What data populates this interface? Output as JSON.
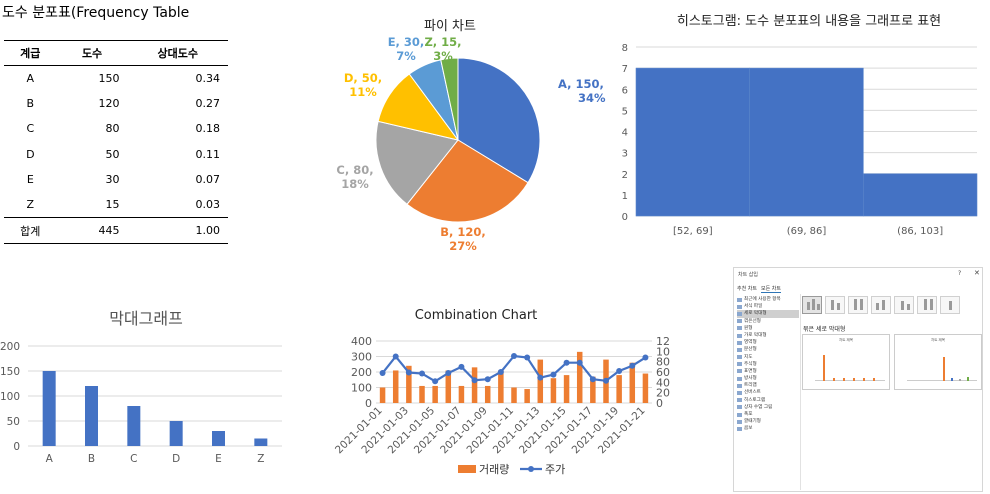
{
  "freq_table": {
    "title": "도수 분포표(Frequency Table",
    "headers": [
      "계급",
      "도수",
      "상대도수"
    ],
    "rows": [
      {
        "cls": "A",
        "freq": "150",
        "rel": "0.34"
      },
      {
        "cls": "B",
        "freq": "120",
        "rel": "0.27"
      },
      {
        "cls": "C",
        "freq": "80",
        "rel": "0.18"
      },
      {
        "cls": "D",
        "freq": "50",
        "rel": "0.11"
      },
      {
        "cls": "E",
        "freq": "30",
        "rel": "0.07"
      },
      {
        "cls": "Z",
        "freq": "15",
        "rel": "0.03"
      }
    ],
    "total": {
      "cls": "합계",
      "freq": "445",
      "rel": "1.00"
    }
  },
  "chart_data": [
    {
      "type": "pie",
      "title": "파이 차트",
      "categories": [
        "A",
        "B",
        "C",
        "D",
        "E",
        "Z"
      ],
      "values": [
        150,
        120,
        80,
        50,
        30,
        15
      ],
      "percent_labels": [
        "34%",
        "27%",
        "18%",
        "11%",
        "7%",
        "3%"
      ],
      "data_labels": [
        [
          "A, 150,",
          "34%"
        ],
        [
          "B, 120,",
          "27%"
        ],
        [
          "C, 80,",
          "18%"
        ],
        [
          "D, 50,",
          "11%"
        ],
        [
          "E, 30,",
          "7%"
        ],
        [
          "Z, 15,",
          "3%"
        ]
      ],
      "colors": [
        "#4472c4",
        "#ed7d31",
        "#a5a5a5",
        "#ffc000",
        "#5b9bd5",
        "#70ad47"
      ]
    },
    {
      "type": "bar",
      "title": "히스토그램: 도수 분포표의 내용을 그래프로 표현",
      "categories": [
        "[52, 69]",
        "(69, 86]",
        "(86, 103]"
      ],
      "values": [
        7,
        7,
        2
      ],
      "ylim": [
        0,
        8
      ],
      "yticks": [
        "0",
        "1",
        "2",
        "3",
        "4",
        "5",
        "6",
        "7",
        "8"
      ],
      "grid": true,
      "color": "#4472c4"
    },
    {
      "type": "bar",
      "title": "막대그래프",
      "categories": [
        "A",
        "B",
        "C",
        "D",
        "E",
        "Z"
      ],
      "values": [
        150,
        120,
        80,
        50,
        30,
        15
      ],
      "ylim": [
        0,
        200
      ],
      "yticks": [
        "0",
        "50",
        "100",
        "150",
        "200"
      ],
      "grid": true,
      "color": "#4472c4"
    },
    {
      "type": "combo",
      "title": "Combination Chart",
      "x": [
        "2021-01-01",
        "2021-01-02",
        "2021-01-03",
        "2021-01-04",
        "2021-01-05",
        "2021-01-06",
        "2021-01-07",
        "2021-01-08",
        "2021-01-09",
        "2021-01-10",
        "2021-01-11",
        "2021-01-12",
        "2021-01-13",
        "2021-01-14",
        "2021-01-15",
        "2021-01-16",
        "2021-01-17",
        "2021-01-18",
        "2021-01-19",
        "2021-01-20",
        "2021-01-21"
      ],
      "xticks": [
        "2021-01-01",
        "2021-01-03",
        "2021-01-05",
        "2021-01-07",
        "2021-01-09",
        "2021-01-11",
        "2021-01-13",
        "2021-01-15",
        "2021-01-17",
        "2021-01-19",
        "2021-01-21"
      ],
      "series": [
        {
          "name": "거래량",
          "type": "bar",
          "axis": "left",
          "color": "#ed7d31",
          "values": [
            100,
            210,
            240,
            110,
            110,
            210,
            110,
            230,
            110,
            210,
            100,
            90,
            280,
            160,
            180,
            330,
            170,
            280,
            180,
            260,
            190
          ]
        },
        {
          "name": "주가",
          "type": "line",
          "axis": "right",
          "color": "#4472c4",
          "values": [
            58,
            90,
            59,
            57,
            42,
            58,
            70,
            44,
            46,
            60,
            91,
            88,
            49,
            55,
            78,
            78,
            46,
            43,
            62,
            72,
            88
          ]
        }
      ],
      "ylim_left": [
        0,
        400
      ],
      "yticks_left": [
        "0",
        "50",
        "100",
        "150",
        "200",
        "250",
        "300",
        "350",
        "400"
      ],
      "ylim_right": [
        0,
        120
      ],
      "yticks_right": [
        "0",
        "20",
        "40",
        "60",
        "80",
        "100",
        "120"
      ],
      "legend": "bottom"
    }
  ],
  "dialog": {
    "title": "차트 삽입",
    "help": "?",
    "close": "✕",
    "tabs": [
      "추천 차트",
      "모든 차트"
    ],
    "items": [
      "최근에 사용한 항목",
      "서식 파일",
      "세로 막대형",
      "꺾은선형",
      "원형",
      "가로 막대형",
      "영역형",
      "분산형",
      "지도",
      "주식형",
      "표면형",
      "방사형",
      "트리맵",
      "선버스트",
      "히스토그램",
      "상자 수염 그림",
      "폭포",
      "깔때기형",
      "콤보"
    ],
    "selected_index": 2,
    "subtitle": "묶은 세로 막대형",
    "preview_title": "차트 제목"
  }
}
